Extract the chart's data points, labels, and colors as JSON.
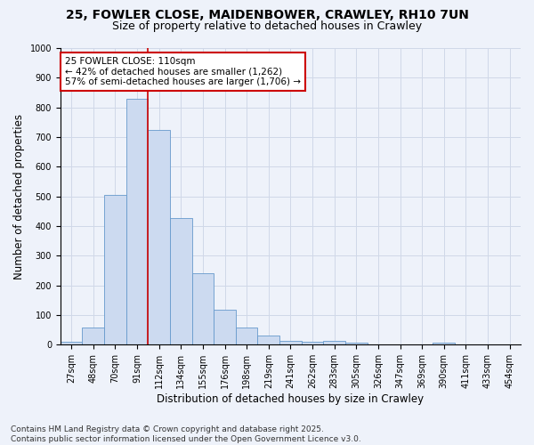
{
  "title_line1": "25, FOWLER CLOSE, MAIDENBOWER, CRAWLEY, RH10 7UN",
  "title_line2": "Size of property relative to detached houses in Crawley",
  "xlabel": "Distribution of detached houses by size in Crawley",
  "ylabel": "Number of detached properties",
  "bin_labels": [
    "27sqm",
    "48sqm",
    "70sqm",
    "91sqm",
    "112sqm",
    "134sqm",
    "155sqm",
    "176sqm",
    "198sqm",
    "219sqm",
    "241sqm",
    "262sqm",
    "283sqm",
    "305sqm",
    "326sqm",
    "347sqm",
    "369sqm",
    "390sqm",
    "411sqm",
    "433sqm",
    "454sqm"
  ],
  "bar_values": [
    10,
    57,
    505,
    830,
    725,
    428,
    240,
    117,
    57,
    32,
    14,
    10,
    13,
    7,
    0,
    0,
    0,
    7,
    0,
    0,
    0
  ],
  "bar_color": "#ccdaf0",
  "bar_edge_color": "#6699cc",
  "vline_color": "#cc0000",
  "annotation_text": "25 FOWLER CLOSE: 110sqm\n← 42% of detached houses are smaller (1,262)\n57% of semi-detached houses are larger (1,706) →",
  "annotation_box_color": "#cc0000",
  "ylim": [
    0,
    1000
  ],
  "yticks": [
    0,
    100,
    200,
    300,
    400,
    500,
    600,
    700,
    800,
    900,
    1000
  ],
  "grid_color": "#d0d8e8",
  "background_color": "#eef2fa",
  "footer_line1": "Contains HM Land Registry data © Crown copyright and database right 2025.",
  "footer_line2": "Contains public sector information licensed under the Open Government Licence v3.0.",
  "title_fontsize": 10,
  "subtitle_fontsize": 9,
  "axis_label_fontsize": 8.5,
  "tick_fontsize": 7,
  "annotation_fontsize": 7.5,
  "footer_fontsize": 6.5,
  "vline_bin_index": 4
}
